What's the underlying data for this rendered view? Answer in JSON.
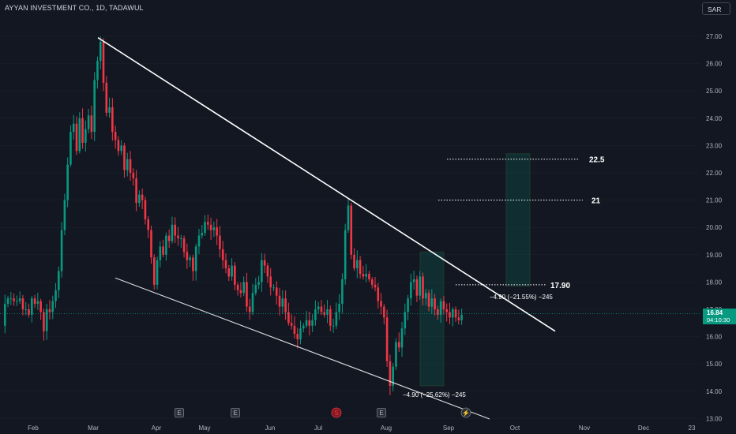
{
  "header": {
    "title": "AYYAN INVESTMENT CO., 1D, TADAWUL",
    "currency": "SAR"
  },
  "last_price": {
    "price": "16.84",
    "countdown": "04:10:30"
  },
  "colors": {
    "background": "#131722",
    "up": "#089981",
    "down": "#f23645",
    "grid": "#1e222d",
    "axis_text": "#b2b5be",
    "trendline": "#ffffff",
    "box_fill": "rgba(8,153,129,0.18)",
    "box_stroke": "#1f3a2c"
  },
  "chart_data": {
    "type": "candlestick",
    "title": "AYYAN INVESTMENT CO., 1D, TADAWUL",
    "ylim": [
      13.0,
      27.5
    ],
    "y_ticks": [
      "13.00",
      "14.00",
      "15.00",
      "16.00",
      "17.00",
      "18.00",
      "19.00",
      "20.00",
      "21.00",
      "22.00",
      "23.00",
      "24.00",
      "25.00",
      "26.00",
      "27.00"
    ],
    "x_ticks": [
      "Feb",
      "Mar",
      "Apr",
      "May",
      "Jun",
      "Jul",
      "Aug",
      "Sep",
      "Oct",
      "Nov",
      "Dec",
      "23"
    ],
    "grid": false,
    "legend": "none",
    "price_path": [
      [
        0,
        16.4
      ],
      [
        1,
        17.2
      ],
      [
        2,
        17.4
      ],
      [
        3,
        17.4
      ],
      [
        4,
        17.3
      ],
      [
        5,
        17.3
      ],
      [
        6,
        17.4
      ],
      [
        7,
        17.0
      ],
      [
        8,
        17.0
      ],
      [
        9,
        16.8
      ],
      [
        10,
        17.4
      ],
      [
        11,
        17.2
      ],
      [
        12,
        17.3
      ],
      [
        13,
        16.9
      ],
      [
        14,
        16.2
      ],
      [
        15,
        17.0
      ],
      [
        16,
        16.9
      ],
      [
        17,
        17.3
      ],
      [
        18,
        17.7
      ],
      [
        19,
        18.4
      ],
      [
        20,
        19.9
      ],
      [
        21,
        21.0
      ],
      [
        22,
        22.3
      ],
      [
        23,
        23.5
      ],
      [
        24,
        23.8
      ],
      [
        25,
        22.8
      ],
      [
        26,
        24.0
      ],
      [
        27,
        23.1
      ],
      [
        28,
        23.6
      ],
      [
        29,
        24.1
      ],
      [
        30,
        23.5
      ],
      [
        31,
        25.4
      ],
      [
        32,
        26.1
      ],
      [
        33,
        26.8
      ],
      [
        34,
        25.3
      ],
      [
        35,
        24.2
      ],
      [
        36,
        24.4
      ],
      [
        37,
        23.5
      ],
      [
        38,
        23.2
      ],
      [
        39,
        22.8
      ],
      [
        40,
        23.0
      ],
      [
        41,
        22.1
      ],
      [
        42,
        22.5
      ],
      [
        43,
        22.0
      ],
      [
        44,
        21.8
      ],
      [
        45,
        20.9
      ],
      [
        46,
        21.2
      ],
      [
        47,
        21.0
      ],
      [
        48,
        20.3
      ],
      [
        49,
        19.9
      ],
      [
        50,
        18.9
      ],
      [
        51,
        17.9
      ],
      [
        52,
        18.8
      ],
      [
        53,
        19.3
      ],
      [
        54,
        19.0
      ],
      [
        55,
        19.7
      ],
      [
        56,
        19.5
      ],
      [
        57,
        20.1
      ],
      [
        58,
        19.7
      ],
      [
        59,
        19.6
      ],
      [
        60,
        19.6
      ],
      [
        61,
        19.1
      ],
      [
        62,
        18.8
      ],
      [
        63,
        18.9
      ],
      [
        64,
        18.4
      ],
      [
        65,
        19.3
      ],
      [
        66,
        19.7
      ],
      [
        67,
        19.8
      ],
      [
        68,
        20.2
      ],
      [
        69,
        20.1
      ],
      [
        70,
        19.9
      ],
      [
        71,
        20.0
      ],
      [
        72,
        19.7
      ],
      [
        73,
        19.2
      ],
      [
        74,
        18.8
      ],
      [
        75,
        18.5
      ],
      [
        76,
        18.2
      ],
      [
        77,
        18.6
      ],
      [
        78,
        17.9
      ],
      [
        79,
        17.7
      ],
      [
        80,
        17.6
      ],
      [
        81,
        18.0
      ],
      [
        82,
        17.1
      ],
      [
        83,
        16.9
      ],
      [
        84,
        17.6
      ],
      [
        85,
        17.9
      ],
      [
        86,
        18.0
      ],
      [
        87,
        18.8
      ],
      [
        88,
        18.6
      ],
      [
        89,
        18.2
      ],
      [
        90,
        17.8
      ],
      [
        91,
        17.8
      ],
      [
        92,
        17.5
      ],
      [
        93,
        17.1
      ],
      [
        94,
        17.4
      ],
      [
        95,
        16.9
      ],
      [
        96,
        16.5
      ],
      [
        97,
        16.4
      ],
      [
        98,
        16.1
      ],
      [
        99,
        15.9
      ],
      [
        100,
        16.3
      ],
      [
        101,
        16.4
      ],
      [
        102,
        16.6
      ],
      [
        103,
        16.4
      ],
      [
        104,
        16.6
      ],
      [
        105,
        17.0
      ],
      [
        106,
        17.1
      ],
      [
        107,
        16.9
      ],
      [
        108,
        16.8
      ],
      [
        109,
        17.0
      ],
      [
        110,
        16.4
      ],
      [
        111,
        16.4
      ],
      [
        112,
        16.9
      ],
      [
        113,
        17.2
      ],
      [
        114,
        18.1
      ],
      [
        115,
        19.9
      ],
      [
        116,
        20.8
      ],
      [
        117,
        19.0
      ],
      [
        118,
        18.5
      ],
      [
        119,
        18.8
      ],
      [
        120,
        18.3
      ],
      [
        121,
        18.2
      ],
      [
        122,
        18.3
      ],
      [
        123,
        18.1
      ],
      [
        124,
        17.9
      ],
      [
        125,
        17.8
      ],
      [
        126,
        17.3
      ],
      [
        127,
        17.1
      ],
      [
        128,
        16.7
      ],
      [
        129,
        15.1
      ],
      [
        130,
        14.2
      ],
      [
        131,
        14.9
      ],
      [
        132,
        15.8
      ],
      [
        133,
        15.6
      ],
      [
        134,
        16.3
      ],
      [
        135,
        16.9
      ],
      [
        136,
        17.4
      ],
      [
        137,
        18.0
      ],
      [
        138,
        18.1
      ],
      [
        139,
        17.5
      ],
      [
        140,
        18.2
      ],
      [
        141,
        17.4
      ],
      [
        142,
        17.6
      ],
      [
        143,
        17.1
      ],
      [
        144,
        17.4
      ],
      [
        145,
        17.0
      ],
      [
        146,
        16.8
      ],
      [
        147,
        17.3
      ],
      [
        148,
        17.0
      ],
      [
        149,
        16.9
      ],
      [
        150,
        16.7
      ],
      [
        151,
        17.0
      ],
      [
        152,
        16.7
      ],
      [
        153,
        16.6
      ],
      [
        154,
        16.8
      ]
    ],
    "trendlines": [
      {
        "from": [
          "Mar",
          26.95
        ],
        "to": [
          "Oct",
          16.15
        ]
      },
      {
        "from": [
          "Feb",
          18.15
        ],
        "to": [
          "Sep",
          13.0
        ]
      }
    ],
    "target_levels": [
      "22.5",
      "21",
      "17.90"
    ],
    "measure_boxes": [
      {
        "top": 19.1,
        "bottom": 14.2,
        "label": "−4.90 (−25.62%) −245"
      },
      {
        "top": 22.7,
        "bottom": 17.85,
        "label": "−4.90 (−21.55%) −245"
      }
    ],
    "last_price": 16.84,
    "event_markers": [
      "E",
      "E",
      "S",
      "E",
      "⚡"
    ]
  }
}
